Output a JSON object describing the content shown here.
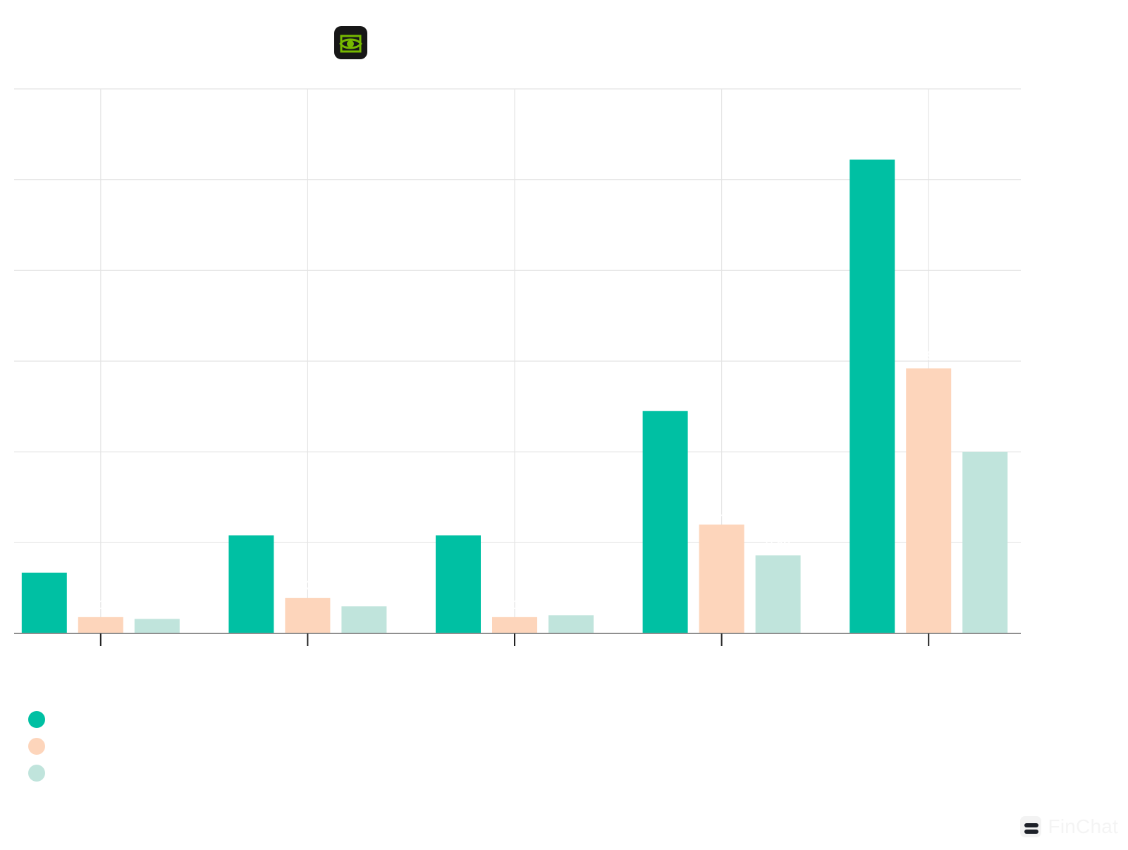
{
  "colors": {
    "background": "#ffffff",
    "grid": "#e4e4e4",
    "axis": "#8f8f8f",
    "series1": "#00c0a3",
    "series2": "#fdd5bb",
    "series3": "#c0e4dc",
    "label": "#ffffff",
    "logo_bg": "#171717",
    "logo_mark": "#76b900"
  },
  "header": {
    "logo_icon": "nvidia-logo-icon"
  },
  "chart_data": {
    "type": "bar",
    "categories": [
      "",
      "",
      "",
      "",
      ""
    ],
    "series": [
      {
        "name": "",
        "color": "#00c0a3",
        "values": [
          0.67,
          1.08,
          1.08,
          2.45,
          5.22
        ]
      },
      {
        "name": "",
        "color": "#fdd5bb",
        "values": [
          0.18,
          0.39,
          0.18,
          1.2,
          2.92
        ]
      },
      {
        "name": "",
        "color": "#c0e4dc",
        "values": [
          0.16,
          0.3,
          0.2,
          0.86,
          2.0
        ]
      }
    ],
    "ylim": [
      0,
      6
    ],
    "grid": true,
    "legend": "bottom-left",
    "title": "",
    "xlabel": "",
    "ylabel": ""
  },
  "brand": {
    "name": "FinChat",
    "icon": "finchat-logo-icon"
  }
}
